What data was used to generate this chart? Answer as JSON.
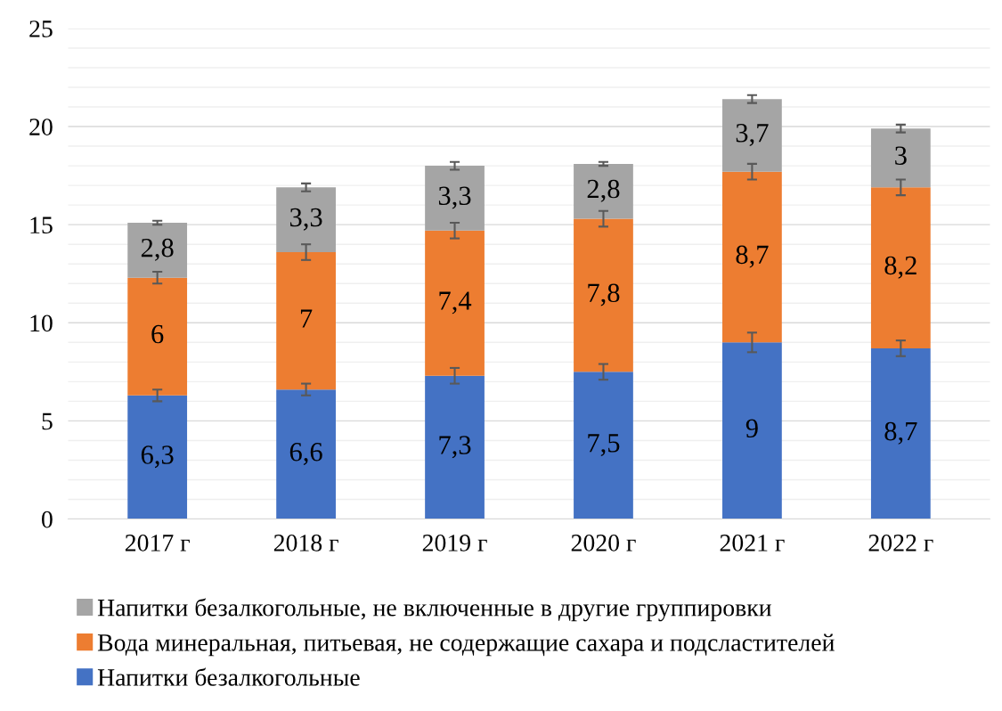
{
  "chart_data": {
    "type": "bar",
    "stacked": true,
    "categories": [
      "2017 г",
      "2018 г",
      "2019 г",
      "2020 г",
      "2021 г",
      "2022 г"
    ],
    "series": [
      {
        "name": "Напитки безалкогольные",
        "color": "#4472c4",
        "values": [
          6.3,
          6.6,
          7.3,
          7.5,
          9,
          8.7
        ],
        "value_labels": [
          "6,3",
          "6,6",
          "7,3",
          "7,5",
          "9",
          "8,7"
        ],
        "errors": [
          0.3,
          0.3,
          0.4,
          0.4,
          0.5,
          0.4
        ]
      },
      {
        "name": "Вода минеральная, питьевая, не содержащие сахара и подсластителей",
        "color": "#ed7d31",
        "values": [
          6,
          7,
          7.4,
          7.8,
          8.7,
          8.2
        ],
        "value_labels": [
          "6",
          "7",
          "7,4",
          "7,8",
          "8,7",
          "8,2"
        ],
        "errors": [
          0.3,
          0.4,
          0.4,
          0.4,
          0.4,
          0.4
        ]
      },
      {
        "name": "Напитки безалкогольные, не включенные в другие группировки",
        "color": "#a5a5a5",
        "values": [
          2.8,
          3.3,
          3.3,
          2.8,
          3.7,
          3
        ],
        "value_labels": [
          "2,8",
          "3,3",
          "3,3",
          "2,8",
          "3,7",
          "3"
        ],
        "errors": [
          0.1,
          0.2,
          0.2,
          0.1,
          0.2,
          0.2
        ]
      }
    ],
    "ylim": [
      0,
      25
    ],
    "yticks": [
      0,
      {
        "value": 1,
        "label": null
      },
      {
        "value": 2,
        "label": null
      },
      {
        "value": 3,
        "label": null
      },
      {
        "value": 4,
        "label": null
      },
      5,
      {
        "value": 6,
        "label": null
      },
      {
        "value": 7,
        "label": null
      },
      {
        "value": 8,
        "label": null
      },
      {
        "value": 9,
        "label": null
      },
      10,
      {
        "value": 11,
        "label": null
      },
      {
        "value": 12,
        "label": null
      },
      {
        "value": 13,
        "label": null
      },
      {
        "value": 14,
        "label": null
      },
      15,
      {
        "value": 16,
        "label": null
      },
      {
        "value": 17,
        "label": null
      },
      {
        "value": 18,
        "label": null
      },
      {
        "value": 19,
        "label": null
      },
      20,
      {
        "value": 21,
        "label": null
      },
      {
        "value": 22,
        "label": null
      },
      {
        "value": 23,
        "label": null
      },
      {
        "value": 24,
        "label": null
      },
      25
    ],
    "grid": "y",
    "legend": "bottom"
  }
}
